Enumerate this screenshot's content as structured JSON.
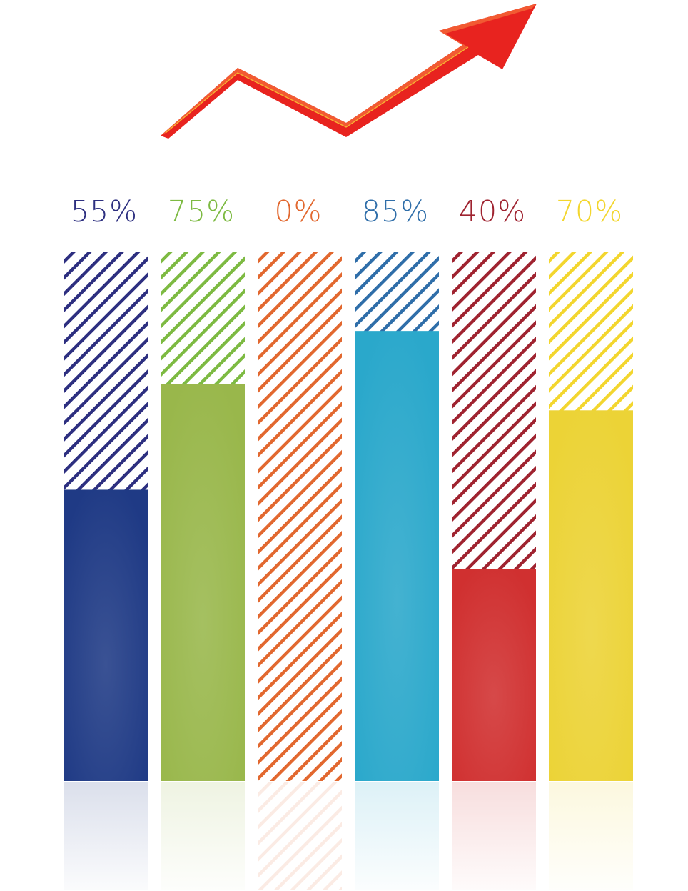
{
  "chart_data": {
    "type": "bar",
    "title": "",
    "xlabel": "",
    "ylabel": "",
    "ylim": [
      0,
      100
    ],
    "grid": false,
    "legend": "none",
    "values": [
      55,
      75,
      0,
      85,
      40,
      70
    ],
    "labels": [
      "55%",
      "75%",
      "0%",
      "85%",
      "40%",
      "70%"
    ],
    "colors": [
      "#1f3a85",
      "#99b74b",
      "#ef7d31",
      "#2aa8cb",
      "#d03030",
      "#ecd336"
    ],
    "label_colors": [
      "#2d2f80",
      "#7dba42",
      "#e2682f",
      "#2f6ea9",
      "#9f2330",
      "#f3d62e"
    ],
    "trend_arrow": {
      "present": true,
      "direction": "up",
      "color": "#e8231f"
    }
  }
}
